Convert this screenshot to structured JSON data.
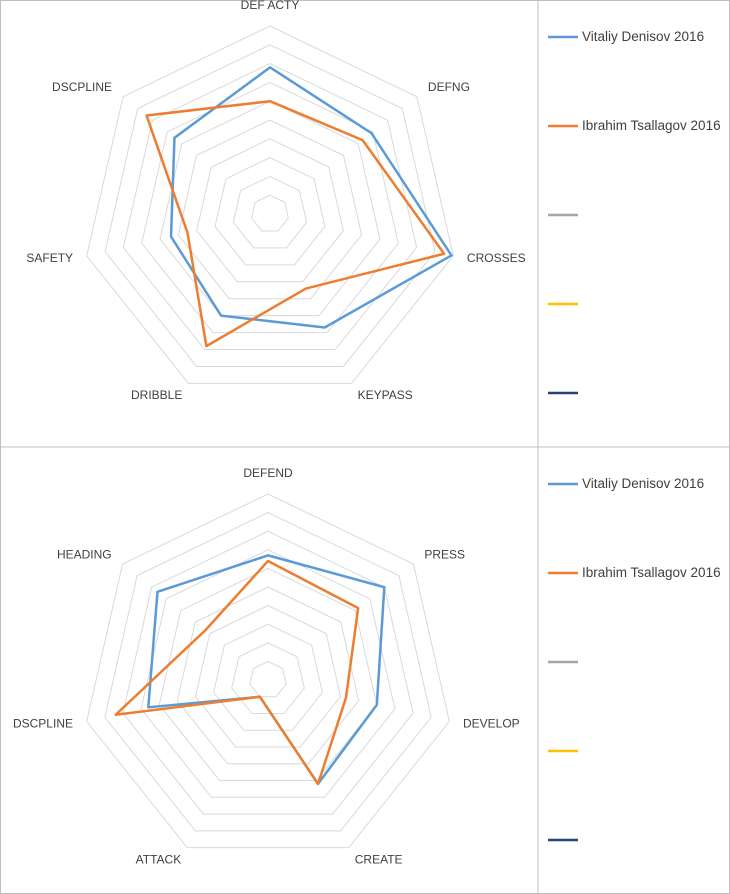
{
  "chart_data": [
    {
      "type": "radar",
      "categories": [
        "DEF ACTY",
        "DEFNG",
        "CROSSES",
        "KEYPASS",
        "DRIBBLE",
        "SAFETY",
        "DSCPLINE"
      ],
      "ylim": [
        0,
        10
      ],
      "yticks": [
        1,
        2,
        3,
        4,
        5,
        6,
        7,
        8,
        9,
        10
      ],
      "grid": true,
      "legend": "right",
      "series": [
        {
          "name": "Vitaliy Denisov 2016",
          "color": "#5b9bd5",
          "values": [
            7.8,
            6.9,
            9.9,
            6.7,
            6.0,
            5.4,
            6.5
          ]
        },
        {
          "name": "Ibrahim Tsallagov 2016",
          "color": "#ed7d31",
          "values": [
            6.0,
            6.3,
            9.5,
            4.4,
            7.8,
            4.5,
            8.4
          ]
        },
        {
          "name": null,
          "color": "#a5a5a5",
          "values": [
            null,
            null,
            null,
            null,
            null,
            null,
            null
          ]
        },
        {
          "name": null,
          "color": "#ffc000",
          "values": [
            null,
            null,
            null,
            null,
            null,
            null,
            null
          ]
        },
        {
          "name": null,
          "color": "#264478",
          "values": [
            null,
            null,
            null,
            null,
            null,
            null,
            null
          ]
        }
      ]
    },
    {
      "type": "radar",
      "categories": [
        "DEFEND",
        "PRESS",
        "DEVELOP",
        "CREATE",
        "ATTACK",
        "DSCPLINE",
        "HEADING"
      ],
      "ylim": [
        0,
        10
      ],
      "yticks": [
        1,
        2,
        3,
        4,
        5,
        6,
        7,
        8,
        9,
        10
      ],
      "grid": true,
      "legend": "right",
      "series": [
        {
          "name": "Vitaliy Denisov 2016",
          "color": "#5b9bd5",
          "values": [
            6.7,
            8.0,
            6.0,
            6.2,
            1.0,
            6.6,
            7.6
          ]
        },
        {
          "name": "Ibrahim Tsallagov 2016",
          "color": "#ed7d31",
          "values": [
            6.4,
            6.2,
            4.3,
            6.2,
            1.0,
            8.4,
            4.3
          ]
        },
        {
          "name": null,
          "color": "#a5a5a5",
          "values": [
            null,
            null,
            null,
            null,
            null,
            null,
            null
          ]
        },
        {
          "name": null,
          "color": "#ffc000",
          "values": [
            null,
            null,
            null,
            null,
            null,
            null,
            null
          ]
        },
        {
          "name": null,
          "color": "#264478",
          "values": [
            null,
            null,
            null,
            null,
            null,
            null,
            null
          ]
        }
      ]
    }
  ]
}
